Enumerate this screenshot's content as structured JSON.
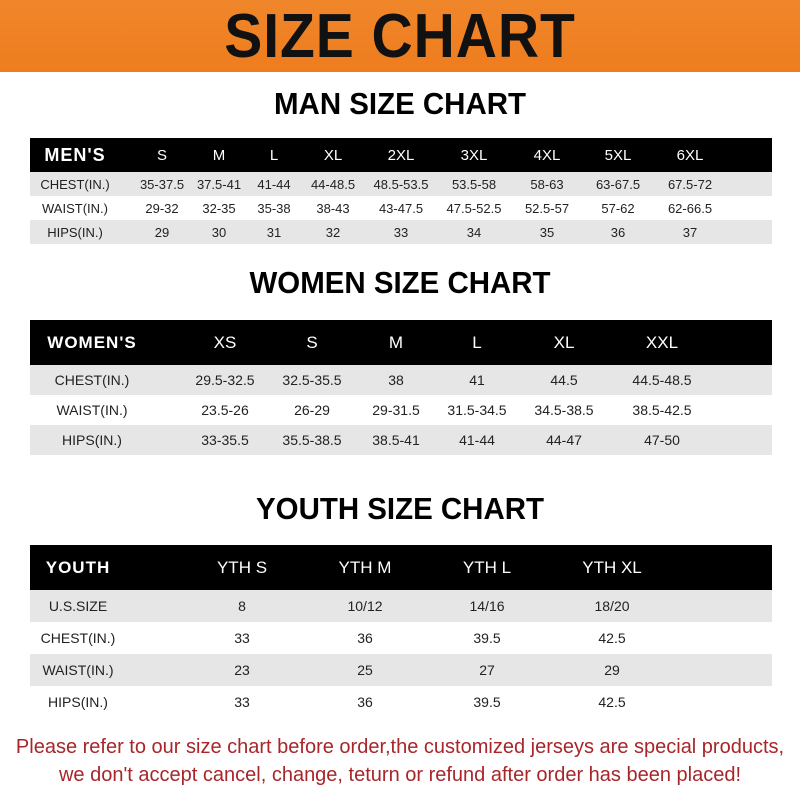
{
  "title": "SIZE CHART",
  "colors": {
    "banner": "#ef8224",
    "header_row": "#000000",
    "alt_row": "#e6e6e6",
    "note": "#a8262a"
  },
  "men": {
    "heading": "MAN SIZE CHART",
    "header": [
      "MEN'S",
      "S",
      "M",
      "L",
      "XL",
      "2XL",
      "3XL",
      "4XL",
      "5XL",
      "6XL"
    ],
    "rows": [
      [
        "CHEST(IN.)",
        "35-37.5",
        "37.5-41",
        "41-44",
        "44-48.5",
        "48.5-53.5",
        "53.5-58",
        "58-63",
        "63-67.5",
        "67.5-72"
      ],
      [
        "WAIST(IN.)",
        "29-32",
        "32-35",
        "35-38",
        "38-43",
        "43-47.5",
        "47.5-52.5",
        "52.5-57",
        "57-62",
        "62-66.5"
      ],
      [
        "HIPS(IN.)",
        "29",
        "30",
        "31",
        "32",
        "33",
        "34",
        "35",
        "36",
        "37"
      ]
    ]
  },
  "women": {
    "heading": "WOMEN SIZE CHART",
    "header": [
      "WOMEN'S",
      "XS",
      "S",
      "M",
      "L",
      "XL",
      "XXL"
    ],
    "rows": [
      [
        "CHEST(IN.)",
        "29.5-32.5",
        "32.5-35.5",
        "38",
        "41",
        "44.5",
        "44.5-48.5"
      ],
      [
        "WAIST(IN.)",
        "23.5-26",
        "26-29",
        "29-31.5",
        "31.5-34.5",
        "34.5-38.5",
        "38.5-42.5"
      ],
      [
        "HIPS(IN.)",
        "33-35.5",
        "35.5-38.5",
        "38.5-41",
        "41-44",
        "44-47",
        "47-50"
      ]
    ]
  },
  "youth": {
    "heading": "YOUTH SIZE CHART",
    "header": [
      "YOUTH",
      "YTH S",
      "YTH M",
      "YTH L",
      "YTH XL"
    ],
    "rows": [
      [
        "U.S.SIZE",
        "8",
        "10/12",
        "14/16",
        "18/20"
      ],
      [
        "CHEST(IN.)",
        "33",
        "36",
        "39.5",
        "42.5"
      ],
      [
        "WAIST(IN.)",
        "23",
        "25",
        "27",
        "29"
      ],
      [
        "HIPS(IN.)",
        "33",
        "36",
        "39.5",
        "42.5"
      ]
    ]
  },
  "note": {
    "line1": "Please refer to our size chart before order,the customized jerseys are special products,",
    "line2": "we don't accept cancel, change, teturn or refund after order has been placed!"
  }
}
